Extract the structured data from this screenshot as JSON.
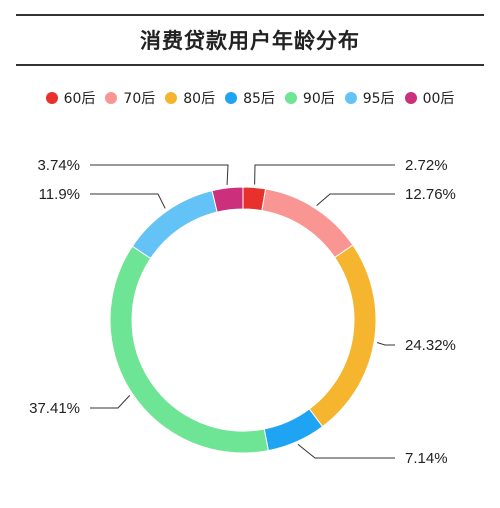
{
  "chart_data": {
    "type": "pie",
    "title": "消费贷款用户年龄分布",
    "legend_position": "top",
    "series": [
      {
        "name": "60后",
        "value": 2.72,
        "label": "2.72%",
        "color": "#e8302c"
      },
      {
        "name": "70后",
        "value": 12.76,
        "label": "12.76%",
        "color": "#f99694"
      },
      {
        "name": "80后",
        "value": 24.32,
        "label": "24.32%",
        "color": "#f6b52e"
      },
      {
        "name": "85后",
        "value": 7.14,
        "label": "7.14%",
        "color": "#1fa3f3"
      },
      {
        "name": "90后",
        "value": 37.41,
        "label": "37.41%",
        "color": "#6ee495"
      },
      {
        "name": "95后",
        "value": 11.9,
        "label": "11.9%",
        "color": "#64c3f6"
      },
      {
        "name": "00后",
        "value": 3.74,
        "label": "3.74%",
        "color": "#cc2f7c"
      }
    ]
  }
}
